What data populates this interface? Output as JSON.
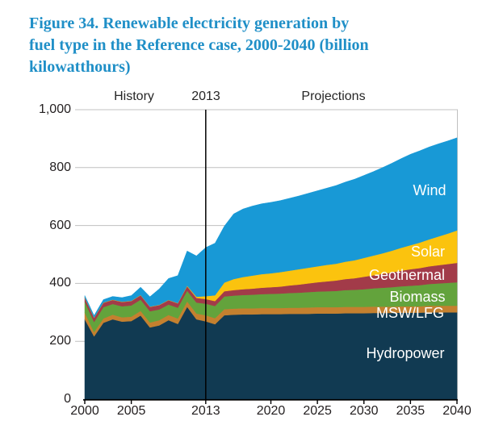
{
  "title": {
    "line1": "Figure 34. Renewable electricity generation by",
    "line2": "fuel type in the Reference case, 2000-2040 (billion",
    "line3": "kilowatthours)"
  },
  "header": {
    "history": "History",
    "divider_year": "2013",
    "projections": "Projections"
  },
  "chart_data": {
    "type": "area",
    "stacked": true,
    "title": "Figure 34. Renewable electricity generation by fuel type in the Reference case, 2000-2040 (billion kilowatthours)",
    "unit": "billion kilowatthours",
    "xlim": [
      2000,
      2040
    ],
    "ylim": [
      0,
      1000
    ],
    "grid": "horizontal",
    "divider_year": 2013,
    "x": [
      2000,
      2001,
      2002,
      2003,
      2004,
      2005,
      2006,
      2007,
      2008,
      2009,
      2010,
      2011,
      2012,
      2013,
      2014,
      2015,
      2016,
      2017,
      2018,
      2019,
      2020,
      2021,
      2022,
      2023,
      2024,
      2025,
      2026,
      2027,
      2028,
      2029,
      2030,
      2031,
      2032,
      2033,
      2034,
      2035,
      2036,
      2037,
      2038,
      2039,
      2040
    ],
    "series": [
      {
        "name": "Hydropower",
        "color": "#113A52",
        "values": [
          276,
          217,
          264,
          276,
          268,
          270,
          289,
          248,
          255,
          273,
          260,
          319,
          276,
          269,
          259,
          290,
          292,
          293,
          293,
          294,
          294,
          294,
          295,
          295,
          295,
          296,
          296,
          296,
          297,
          297,
          297,
          298,
          298,
          298,
          299,
          299,
          299,
          300,
          300,
          300,
          300
        ]
      },
      {
        "name": "MSW/LFG",
        "color": "#C4802F",
        "values": [
          23,
          15,
          15,
          16,
          15,
          15,
          16,
          17,
          18,
          18,
          19,
          19,
          20,
          21,
          21,
          21,
          21,
          21,
          21,
          21,
          21,
          21,
          21,
          21,
          22,
          22,
          22,
          22,
          22,
          22,
          22,
          22,
          22,
          22,
          22,
          22,
          22,
          23,
          23,
          23,
          23
        ]
      },
      {
        "name": "Biomass",
        "color": "#63A33C",
        "values": [
          38,
          35,
          39,
          37,
          38,
          39,
          39,
          39,
          37,
          36,
          37,
          37,
          38,
          40,
          42,
          44,
          45,
          46,
          47,
          48,
          49,
          50,
          51,
          52,
          53,
          54,
          55,
          56,
          58,
          59,
          61,
          63,
          65,
          67,
          69,
          71,
          73,
          75,
          77,
          79,
          81
        ]
      },
      {
        "name": "Geothermal",
        "color": "#A23B49",
        "values": [
          14,
          14,
          15,
          14,
          15,
          15,
          15,
          15,
          15,
          15,
          15,
          15,
          16,
          16,
          17,
          18,
          19,
          20,
          21,
          22,
          23,
          24,
          26,
          28,
          30,
          32,
          34,
          36,
          38,
          40,
          43,
          45,
          48,
          51,
          54,
          57,
          59,
          61,
          63,
          65,
          67
        ]
      },
      {
        "name": "Solar",
        "color": "#FBC30E",
        "values": [
          1,
          1,
          1,
          1,
          1,
          1,
          1,
          1,
          1,
          1,
          1,
          2,
          4,
          10,
          20,
          30,
          38,
          42,
          45,
          47,
          48,
          50,
          51,
          53,
          54,
          55,
          57,
          58,
          60,
          62,
          65,
          68,
          71,
          75,
          79,
          83,
          88,
          93,
          99,
          105,
          112
        ]
      },
      {
        "name": "Wind",
        "color": "#1899D6",
        "values": [
          6,
          7,
          10,
          11,
          14,
          18,
          27,
          34,
          55,
          74,
          95,
          120,
          141,
          168,
          180,
          195,
          225,
          235,
          240,
          243,
          245,
          247,
          250,
          253,
          257,
          261,
          265,
          270,
          275,
          280,
          285,
          290,
          296,
          302,
          308,
          314,
          317,
          319,
          320,
          320,
          320
        ]
      }
    ],
    "y_ticks": [
      {
        "label": "1,000",
        "value": 1000
      },
      {
        "label": "800",
        "value": 800
      },
      {
        "label": "600",
        "value": 600
      },
      {
        "label": "400",
        "value": 400
      },
      {
        "label": "200",
        "value": 200
      },
      {
        "label": "0",
        "value": 0
      }
    ],
    "x_ticks": [
      {
        "label": "2000",
        "value": 2000
      },
      {
        "label": "2005",
        "value": 2005
      },
      {
        "label": "2013",
        "value": 2013
      },
      {
        "label": "2020",
        "value": 2020
      },
      {
        "label": "2025",
        "value": 2025
      },
      {
        "label": "2030",
        "value": 2030
      },
      {
        "label": "2035",
        "value": 2035
      },
      {
        "label": "2040",
        "value": 2040
      }
    ],
    "colors": {
      "title_blue": "#1F8FC7",
      "gridline": "#C0C0C0",
      "axis": "#000000",
      "tick_text": "#231F20",
      "area_label_text": "#FFFFFF"
    }
  }
}
